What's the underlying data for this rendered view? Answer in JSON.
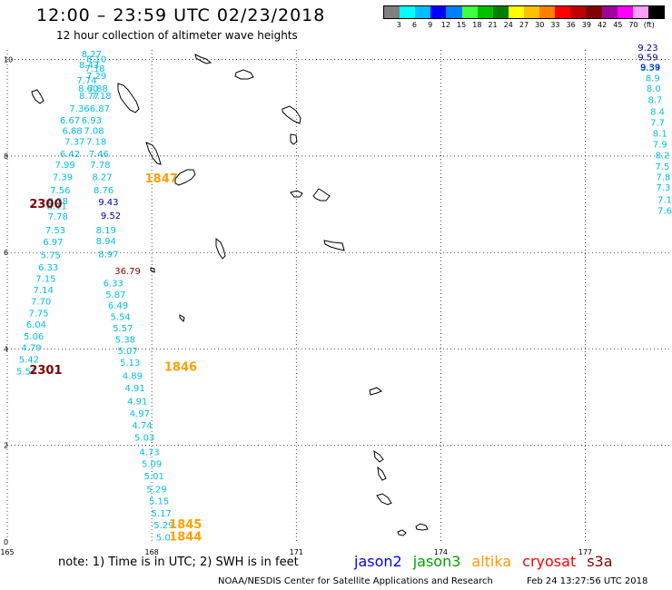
{
  "header": {
    "title": "12:00 – 23:59 UTC 02/23/2018",
    "subtitle": "12 hour collection of altimeter wave heights"
  },
  "color_scale": {
    "colors": [
      "#808080",
      "#00ffff",
      "#00bfff",
      "#0000ff",
      "#0080ff",
      "#40ff40",
      "#00c000",
      "#008000",
      "#ffff00",
      "#ffc000",
      "#ff8000",
      "#ff0000",
      "#c00000",
      "#800000",
      "#a000a0",
      "#ff00ff",
      "#ffa0ff",
      "#000000"
    ],
    "labels": [
      "3",
      "6",
      "9",
      "12",
      "15",
      "18",
      "21",
      "24",
      "27",
      "30",
      "33",
      "36",
      "39",
      "42",
      "45",
      "70",
      "(ft)"
    ]
  },
  "axes": {
    "x_ticks": [
      "165",
      "168",
      "171",
      "174",
      "177"
    ],
    "y_ticks": [
      "10",
      "8",
      "6",
      "4",
      "2",
      "0"
    ]
  },
  "chart_data": {
    "type": "scatter",
    "x_range": [
      165,
      178.8
    ],
    "y_range": [
      0,
      10.2
    ],
    "x_ticks": [
      165,
      168,
      171,
      174,
      177
    ],
    "y_ticks": [
      0,
      2,
      4,
      6,
      8,
      10
    ],
    "grid": "dotted",
    "series": [
      {
        "name": "jason3",
        "color": "#00bfe6",
        "points": [
          {
            "x": 166.75,
            "y": 10.05,
            "v": "8.27"
          },
          {
            "x": 166.85,
            "y": 9.95,
            "v": "8.10"
          },
          {
            "x": 166.7,
            "y": 9.82,
            "v": "8.43"
          },
          {
            "x": 166.82,
            "y": 9.75,
            "v": "7.18"
          },
          {
            "x": 166.85,
            "y": 9.6,
            "v": "7.29"
          },
          {
            "x": 166.65,
            "y": 9.5,
            "v": "7.74"
          },
          {
            "x": 166.68,
            "y": 9.33,
            "v": "8.60"
          },
          {
            "x": 166.88,
            "y": 9.33,
            "v": "7.88"
          },
          {
            "x": 166.7,
            "y": 9.18,
            "v": "8.77"
          },
          {
            "x": 166.95,
            "y": 9.18,
            "v": "7.18"
          },
          {
            "x": 166.5,
            "y": 8.92,
            "v": "7.36"
          },
          {
            "x": 166.92,
            "y": 8.92,
            "v": "6.87"
          },
          {
            "x": 166.3,
            "y": 8.68,
            "v": "6.67"
          },
          {
            "x": 166.75,
            "y": 8.68,
            "v": "6.93"
          },
          {
            "x": 166.35,
            "y": 8.46,
            "v": "6.88"
          },
          {
            "x": 166.8,
            "y": 8.46,
            "v": "7.08"
          },
          {
            "x": 166.4,
            "y": 8.23,
            "v": "7.37"
          },
          {
            "x": 166.85,
            "y": 8.23,
            "v": "7.18"
          },
          {
            "x": 166.3,
            "y": 7.98,
            "v": "6.42"
          },
          {
            "x": 166.9,
            "y": 7.98,
            "v": "7.46"
          },
          {
            "x": 166.2,
            "y": 7.75,
            "v": "7.99"
          },
          {
            "x": 166.93,
            "y": 7.75,
            "v": "7.78"
          },
          {
            "x": 166.15,
            "y": 7.5,
            "v": "7.39"
          },
          {
            "x": 166.97,
            "y": 7.5,
            "v": "8.27"
          },
          {
            "x": 166.1,
            "y": 7.23,
            "v": "7.56"
          },
          {
            "x": 167.0,
            "y": 7.23,
            "v": "8.76"
          },
          {
            "x": 166.05,
            "y": 7.0,
            "v": "8.28"
          },
          {
            "x": 166.03,
            "y": 6.9,
            "v": "8.11"
          },
          {
            "x": 166.05,
            "y": 6.68,
            "v": "7.78"
          },
          {
            "x": 167.05,
            "y": 6.4,
            "v": "8.19"
          },
          {
            "x": 166.0,
            "y": 6.4,
            "v": "7.53"
          },
          {
            "x": 165.95,
            "y": 6.15,
            "v": "6.97"
          },
          {
            "x": 167.05,
            "y": 6.17,
            "v": "8.94"
          },
          {
            "x": 165.9,
            "y": 5.88,
            "v": "5.75"
          },
          {
            "x": 167.1,
            "y": 5.9,
            "v": "8.97"
          },
          {
            "x": 165.85,
            "y": 5.63,
            "v": "6.33"
          },
          {
            "x": 165.8,
            "y": 5.39,
            "v": "7.15"
          },
          {
            "x": 167.2,
            "y": 5.3,
            "v": "6.33"
          },
          {
            "x": 165.75,
            "y": 5.16,
            "v": "7.14"
          },
          {
            "x": 167.25,
            "y": 5.06,
            "v": "5.87"
          },
          {
            "x": 165.7,
            "y": 4.92,
            "v": "7.70"
          },
          {
            "x": 167.3,
            "y": 4.84,
            "v": "6.49"
          },
          {
            "x": 165.65,
            "y": 4.68,
            "v": "7.75"
          },
          {
            "x": 167.35,
            "y": 4.6,
            "v": "5.54"
          },
          {
            "x": 165.6,
            "y": 4.44,
            "v": "6.04"
          },
          {
            "x": 167.4,
            "y": 4.37,
            "v": "5.57"
          },
          {
            "x": 165.55,
            "y": 4.2,
            "v": "5.06"
          },
          {
            "x": 167.45,
            "y": 4.13,
            "v": "5.38"
          },
          {
            "x": 165.5,
            "y": 3.96,
            "v": "4.79"
          },
          {
            "x": 167.5,
            "y": 3.9,
            "v": "5.07"
          },
          {
            "x": 165.45,
            "y": 3.72,
            "v": "5.42"
          },
          {
            "x": 167.55,
            "y": 3.65,
            "v": "5.13"
          },
          {
            "x": 165.4,
            "y": 3.47,
            "v": "5.57"
          },
          {
            "x": 167.6,
            "y": 3.38,
            "v": "4.89"
          },
          {
            "x": 167.65,
            "y": 3.12,
            "v": "4.91"
          },
          {
            "x": 167.7,
            "y": 2.85,
            "v": "4.91"
          },
          {
            "x": 167.75,
            "y": 2.6,
            "v": "4.97"
          },
          {
            "x": 167.8,
            "y": 2.35,
            "v": "4.74"
          },
          {
            "x": 167.85,
            "y": 2.1,
            "v": "5.03"
          },
          {
            "x": 167.95,
            "y": 1.8,
            "v": "4.73"
          },
          {
            "x": 168.0,
            "y": 1.55,
            "v": "5.09"
          },
          {
            "x": 168.05,
            "y": 1.3,
            "v": "5.01"
          },
          {
            "x": 168.1,
            "y": 1.03,
            "v": "5.29"
          },
          {
            "x": 168.15,
            "y": 0.78,
            "v": "5.15"
          },
          {
            "x": 168.2,
            "y": 0.53,
            "v": "5.17"
          },
          {
            "x": 168.25,
            "y": 0.28,
            "v": "5.29"
          },
          {
            "x": 168.3,
            "y": 0.03,
            "v": "5.01"
          },
          {
            "x": 178.35,
            "y": 9.77,
            "v": "8.54"
          },
          {
            "x": 178.4,
            "y": 9.55,
            "v": "8.9"
          },
          {
            "x": 178.42,
            "y": 9.33,
            "v": "8.0"
          },
          {
            "x": 178.45,
            "y": 9.1,
            "v": "8.7"
          },
          {
            "x": 178.5,
            "y": 8.85,
            "v": "8.4"
          },
          {
            "x": 178.5,
            "y": 8.63,
            "v": "7.7"
          },
          {
            "x": 178.55,
            "y": 8.4,
            "v": "8.1"
          },
          {
            "x": 178.55,
            "y": 8.18,
            "v": "7.9"
          },
          {
            "x": 178.6,
            "y": 7.95,
            "v": "8.2"
          },
          {
            "x": 178.6,
            "y": 7.72,
            "v": "7.5"
          },
          {
            "x": 178.62,
            "y": 7.5,
            "v": "7.8"
          },
          {
            "x": 178.62,
            "y": 7.28,
            "v": "7.3"
          },
          {
            "x": 178.65,
            "y": 7.03,
            "v": "7.1"
          },
          {
            "x": 178.65,
            "y": 6.8,
            "v": "7.6"
          }
        ]
      },
      {
        "name": "jason2",
        "color": "#0000b4",
        "points": [
          {
            "x": 167.1,
            "y": 6.98,
            "v": "9.43"
          },
          {
            "x": 167.15,
            "y": 6.7,
            "v": "9.52"
          },
          {
            "x": 178.3,
            "y": 10.18,
            "v": "9.23"
          },
          {
            "x": 178.3,
            "y": 9.98,
            "v": "9.59"
          },
          {
            "x": 178.35,
            "y": 9.78,
            "v": "9.39"
          }
        ]
      },
      {
        "name": "cryosat",
        "color": "#8b0000",
        "points": [
          {
            "x": 167.5,
            "y": 5.55,
            "v": "36.79"
          }
        ]
      }
    ],
    "time_labels": [
      {
        "t": "1847",
        "x": 168.2,
        "y": 7.45,
        "color": "#ffa000"
      },
      {
        "t": "2300",
        "x": 165.8,
        "y": 6.93,
        "color": "#800000"
      },
      {
        "t": "1846",
        "x": 168.6,
        "y": 3.55,
        "color": "#ffa000"
      },
      {
        "t": "2301",
        "x": 165.8,
        "y": 3.48,
        "color": "#800000"
      },
      {
        "t": "1845",
        "x": 168.7,
        "y": 0.28,
        "color": "#ffa000"
      },
      {
        "t": "1844",
        "x": 168.7,
        "y": 0.03,
        "color": "#ffa000"
      }
    ]
  },
  "footer": {
    "note": "note:  1) Time is in UTC;  2) SWH is in feet",
    "satellites": [
      {
        "name": "jason2",
        "color": "#0000ff"
      },
      {
        "name": "jason3",
        "color": "#00a000"
      },
      {
        "name": "altika",
        "color": "#ff9900"
      },
      {
        "name": "cryosat",
        "color": "#ff0000"
      },
      {
        "name": "s3a",
        "color": "#800000"
      }
    ],
    "credit": "NOAA/NESDIS Center for Satellite Applications and Research",
    "timestamp": "Feb 24 13:27:56 UTC 2018"
  }
}
